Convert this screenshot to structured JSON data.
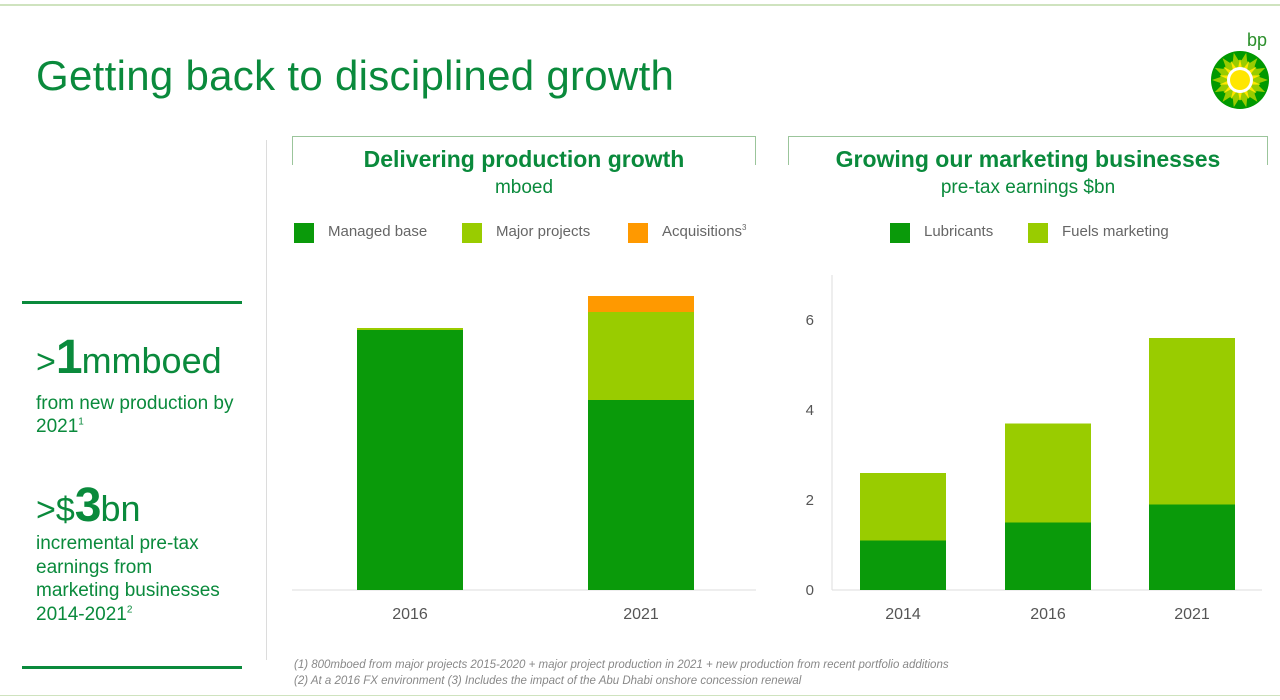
{
  "title": "Getting back to disciplined growth",
  "logo": {
    "text": "bp",
    "icon": "helios-sunflower-icon",
    "colors": [
      "#009900",
      "#99cc00",
      "#ffe600",
      "#ffffff"
    ]
  },
  "sidebar": {
    "kpi1": {
      "prefix": ">",
      "value": "1",
      "unit": "mmboed",
      "desc": "from new production by 2021",
      "note": "1"
    },
    "kpi2": {
      "prefix": ">$",
      "value": "3",
      "unit": "bn",
      "desc": "incremental pre-tax earnings from marketing businesses 2014-2021",
      "note": "2"
    }
  },
  "panels": {
    "production": {
      "title": "Delivering production growth",
      "subtitle": "mboed"
    },
    "marketing": {
      "title": "Growing our marketing businesses",
      "subtitle": "pre-tax earnings $bn"
    }
  },
  "colors": {
    "dark_green": "#0a9a0a",
    "light_green": "#99cc00",
    "orange": "#ff9900",
    "brand_green": "#0a8a3c"
  },
  "chart_data": [
    {
      "type": "bar",
      "stacked": true,
      "categories": [
        "2016",
        "2021"
      ],
      "series": [
        {
          "name": "Managed base",
          "values": [
            2.6,
            1.9
          ],
          "color": "#0a9a0a"
        },
        {
          "name": "Major projects",
          "values": [
            0.02,
            0.88
          ],
          "color": "#99cc00"
        },
        {
          "name": "Acquisitions",
          "values": [
            0,
            0.16
          ],
          "color": "#ff9900",
          "note": "3"
        }
      ],
      "ylim": [
        0,
        3.5
      ],
      "y_axis_shown": false,
      "legend": "top"
    },
    {
      "type": "bar",
      "stacked": true,
      "categories": [
        "2014",
        "2016",
        "2021"
      ],
      "series": [
        {
          "name": "Lubricants",
          "values": [
            1.1,
            1.5,
            1.9
          ],
          "color": "#0a9a0a"
        },
        {
          "name": "Fuels marketing",
          "values": [
            1.5,
            2.2,
            3.7
          ],
          "color": "#99cc00"
        }
      ],
      "yticks": [
        0,
        2,
        4,
        6
      ],
      "ylim": [
        0,
        7
      ],
      "grid": false,
      "legend": "top"
    }
  ],
  "footnotes": [
    "(1) 800mboed from major projects 2015-2020 + major project production in 2021 + new production from recent portfolio additions",
    "(2) At a 2016 FX environment (3) Includes the impact of the Abu Dhabi onshore concession renewal"
  ]
}
